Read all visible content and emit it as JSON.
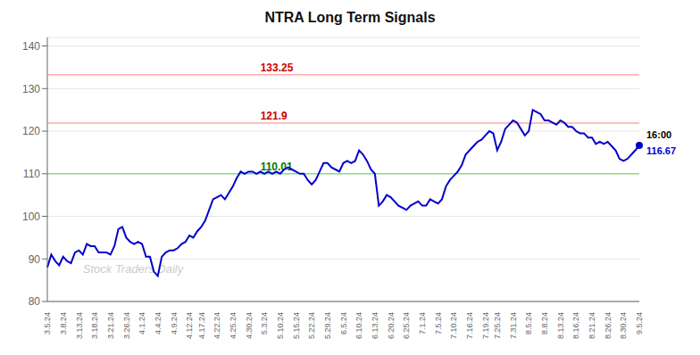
{
  "chart_data": {
    "type": "line",
    "title": "NTRA Long Term Signals",
    "watermark": "Stock Traders Daily",
    "categories": [
      "3.5.24",
      null,
      null,
      null,
      "3.8.24",
      null,
      null,
      null,
      "3.13.24",
      null,
      null,
      null,
      "3.18.24",
      null,
      null,
      null,
      "3.21.24",
      null,
      null,
      null,
      "3.26.24",
      null,
      null,
      null,
      "4.1.24",
      null,
      null,
      null,
      "4.4.24",
      null,
      null,
      null,
      "4.9.24",
      null,
      null,
      null,
      "4.12.24",
      null,
      null,
      "4.17.24",
      null,
      null,
      null,
      "4.22.24",
      null,
      null,
      null,
      "4.25.24",
      null,
      null,
      null,
      "4.30.24",
      null,
      null,
      null,
      "5.3.24",
      null,
      null,
      null,
      "5.10.24",
      null,
      null,
      null,
      "5.15.24",
      null,
      null,
      null,
      "5.22.24",
      null,
      null,
      null,
      "5.29.24",
      null,
      null,
      null,
      "6.5.24",
      null,
      null,
      null,
      "6.10.24",
      null,
      null,
      null,
      "6.13.24",
      null,
      null,
      null,
      "6.20.24",
      null,
      null,
      null,
      "6.25.24",
      null,
      null,
      null,
      "7.1.24",
      null,
      null,
      null,
      "7.5.24",
      null,
      null,
      null,
      "7.10.24",
      null,
      null,
      null,
      "7.16.24",
      null,
      null,
      null,
      "7.19.24",
      null,
      null,
      "7.25.24",
      null,
      null,
      null,
      "7.31.24",
      null,
      null,
      null,
      "8.5.24",
      null,
      null,
      null,
      "8.8.24",
      null,
      null,
      null,
      "8.13.24",
      null,
      null,
      null,
      "8.16.24",
      null,
      null,
      null,
      "8.21.24",
      null,
      null,
      null,
      "8.26.24",
      null,
      null,
      null,
      "8.30.24",
      null,
      null,
      null,
      "9.5.24"
    ],
    "values": [
      88.0,
      91.0,
      89.5,
      88.5,
      90.5,
      89.5,
      89.0,
      91.5,
      92.0,
      91.0,
      93.5,
      93.0,
      93.0,
      91.5,
      91.5,
      91.5,
      91.0,
      93.0,
      97.0,
      97.5,
      95.0,
      94.0,
      93.5,
      94.0,
      93.5,
      90.5,
      90.5,
      87.0,
      86.0,
      90.5,
      91.5,
      92.0,
      92.0,
      92.5,
      93.5,
      94.0,
      95.5,
      95.0,
      96.5,
      97.5,
      99.0,
      101.5,
      104.0,
      104.5,
      105.0,
      104.0,
      105.5,
      107.0,
      109.0,
      110.5,
      110.0,
      110.5,
      110.5,
      110.0,
      110.5,
      110.0,
      110.5,
      110.0,
      110.5,
      110.0,
      111.0,
      111.5,
      111.0,
      110.5,
      110.0,
      110.0,
      108.5,
      107.5,
      108.5,
      110.5,
      112.5,
      112.5,
      111.5,
      111.0,
      110.5,
      112.5,
      113.0,
      112.5,
      113.0,
      115.5,
      114.5,
      113.0,
      111.0,
      110.0,
      102.5,
      103.5,
      105.0,
      104.5,
      103.5,
      102.5,
      102.0,
      101.5,
      102.5,
      103.0,
      103.5,
      102.5,
      102.5,
      104.0,
      103.5,
      103.0,
      104.0,
      107.0,
      108.5,
      109.5,
      110.5,
      112.0,
      114.5,
      115.5,
      116.5,
      117.5,
      118.0,
      119.0,
      120.0,
      119.5,
      115.5,
      117.5,
      120.5,
      121.5,
      122.5,
      122.0,
      120.5,
      119.0,
      120.0,
      125.0,
      124.5,
      124.0,
      122.5,
      122.5,
      122.0,
      121.5,
      122.5,
      122.0,
      121.0,
      121.0,
      120.0,
      119.5,
      119.5,
      118.5,
      118.5,
      117.0,
      117.5,
      117.0,
      117.5,
      116.5,
      115.5,
      113.5,
      113.0,
      113.5,
      114.5,
      115.5,
      116.67
    ],
    "color": "#0000cc",
    "ylim": [
      80,
      142
    ],
    "yticks": [
      80,
      90,
      100,
      110,
      120,
      130,
      140
    ],
    "grid": true,
    "reference_lines": [
      {
        "y": 133.25,
        "label": "133.25",
        "color": "#ffaaaa",
        "label_color": "#cc0000"
      },
      {
        "y": 121.9,
        "label": "121.9",
        "color": "#ffaaaa",
        "label_color": "#cc0000"
      },
      {
        "y": 110.0,
        "label": "110.01",
        "color": "#88dd88",
        "label_color": "#007700"
      }
    ],
    "annotations": [
      {
        "text": "16:00",
        "color": "#000000"
      },
      {
        "text": "116.67",
        "color": "#0000cc"
      }
    ]
  }
}
